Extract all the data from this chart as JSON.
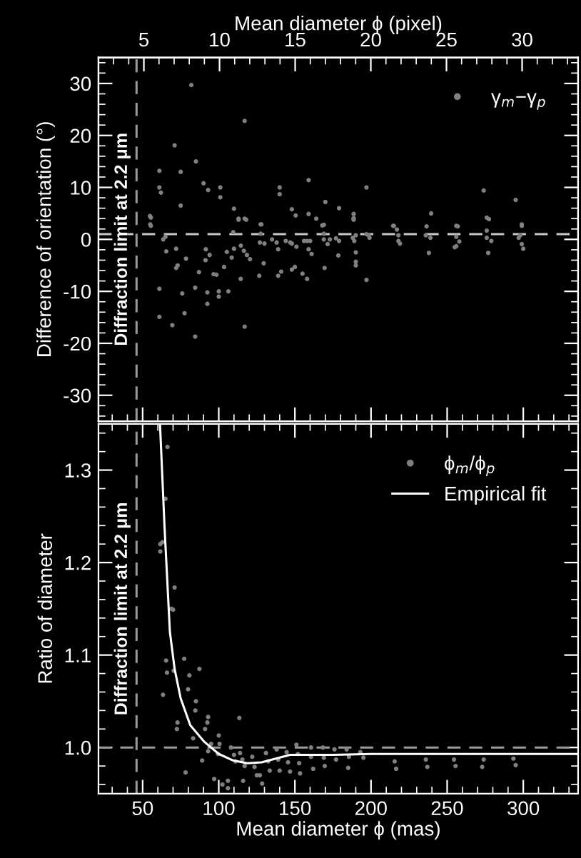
{
  "chart_data": [
    {
      "type": "scatter",
      "ylabel": "Difference of orientation (°)",
      "x2label": "Mean diameter ϕ (pixel)",
      "xlim": [
        21,
        336
      ],
      "xticks": [
        50,
        100,
        150,
        200,
        250,
        300
      ],
      "x2lim": [
        2.0,
        33.7
      ],
      "x2ticks": [
        5,
        10,
        15,
        20,
        25,
        30
      ],
      "ylim": [
        -35,
        35
      ],
      "yticks": [
        -30,
        -20,
        -10,
        0,
        10,
        20,
        30
      ],
      "tick_labels": "y",
      "legend": "top right",
      "grid": false,
      "ref_lines": [
        {
          "axis": "x",
          "value": 46,
          "label": "Diffraction limit at 2.2 μm",
          "color": "#9a9a9a",
          "line_style": "dashed"
        },
        {
          "axis": "y",
          "value": 1,
          "label": null,
          "color": "#c8c8c8",
          "line_style": "dashed"
        }
      ],
      "series": [
        {
          "name": "γ$_{m}$−γ$_{p}$",
          "marker": "circle",
          "color": "#808080",
          "x": [
            82,
            117,
            71,
            61,
            75,
            85,
            61,
            62,
            75,
            90,
            93,
            101,
            101,
            110,
            113,
            118,
            128,
            140,
            140,
            148,
            150.5,
            159,
            159,
            170,
            179,
            188.6,
            188.6,
            188.6,
            197,
            239.5,
            274,
            277.5,
            295,
            299,
            54.8,
            55,
            169,
            215,
            256,
            55.4,
            55.4,
            61,
            61,
            63.5,
            65,
            65.5,
            69.5,
            72,
            72,
            73,
            76,
            77.5,
            78.5,
            84.5,
            84.5,
            87,
            91.3,
            91.5,
            92.5,
            92.5,
            94,
            96.6,
            98.5,
            100,
            100,
            103.5,
            105.3,
            106.3,
            108.5,
            109.5,
            110,
            113,
            117,
            114.4,
            114.5,
            116.5,
            117,
            118.5,
            120.5,
            126.6,
            127.5,
            127.5,
            127,
            130,
            129.5,
            135,
            138,
            139,
            139,
            141,
            144,
            147,
            148,
            148,
            150,
            151,
            155,
            158,
            156,
            158,
            160,
            159,
            161,
            164,
            168,
            169,
            169,
            171.5,
            173,
            177,
            179,
            169.5,
            178.5,
            188.5,
            188,
            189,
            190,
            190,
            190,
            190,
            197,
            198.5,
            199,
            197,
            214.5,
            217,
            218,
            218,
            219,
            236.5,
            236,
            239,
            238,
            257,
            256,
            258,
            256,
            255,
            276,
            276,
            276,
            279,
            277,
            299,
            298,
            297,
            299,
            300
          ],
          "values": [
            29.7,
            22.8,
            18.1,
            13.2,
            13,
            15,
            10,
            9,
            6.5,
            10.8,
            9.5,
            10,
            8.1,
            5.9,
            3.8,
            3.8,
            2.9,
            10,
            8.7,
            5.8,
            4.6,
            11.4,
            4.9,
            7.2,
            6,
            4.9,
            4.1,
            3.8,
            10,
            5,
            9.4,
            3.9,
            7.6,
            2.9,
            4.5,
            2.9,
            2.8,
            2.6,
            2.6,
            4.2,
            2.6,
            -9.5,
            -14.9,
            0,
            0.5,
            -2.3,
            -16.5,
            -1.8,
            -5.5,
            -5,
            -10.4,
            -14.2,
            -3.7,
            -18.7,
            -9.3,
            -6.3,
            -4,
            -1.9,
            -10.2,
            -12.4,
            -3,
            -6.7,
            -6.8,
            -10,
            -11,
            -5.3,
            -2.4,
            -10,
            -3.5,
            1.4,
            -1.8,
            4,
            4,
            -7.6,
            -1.2,
            -2.2,
            -16.8,
            -3,
            -3.8,
            -7,
            2.9,
            1.1,
            -0.6,
            -0.8,
            -4.6,
            0,
            -0.6,
            -1.9,
            -7,
            -6.2,
            -0.3,
            -0.6,
            -0.8,
            -5.8,
            -5.3,
            -1.4,
            -6.6,
            -7.6,
            -0.3,
            -0.3,
            -0.3,
            -1.9,
            -2.8,
            4,
            2.7,
            1.1,
            0,
            -0.9,
            0,
            0.2,
            -0.3,
            -5.5,
            -3.1,
            3.9,
            0.3,
            -0.3,
            0.8,
            -2.5,
            -4.3,
            -5,
            1,
            0.8,
            0.3,
            -7.8,
            2.6,
            1.9,
            0.8,
            -0.3,
            -0.8,
            2.5,
            0.8,
            0.3,
            -2.6,
            2.5,
            0.5,
            -0.4,
            -1.3,
            -1.5,
            4.2,
            1.7,
            0.3,
            -0.3,
            -2.6,
            2.6,
            0.8,
            0.3,
            -0.9,
            -1.8
          ]
        }
      ]
    },
    {
      "type": "scatter",
      "xlabel": "Mean diameter ϕ (mas)",
      "ylabel": "Ratio of diameter",
      "xlim": [
        21,
        336
      ],
      "xticks": [
        50,
        100,
        150,
        200,
        250,
        300
      ],
      "ylim": [
        0.95,
        1.35
      ],
      "yticks": [
        {
          "value": 1.0,
          "label": "1.0"
        },
        1.1,
        1.2,
        1.3
      ],
      "tick_labels": true,
      "legend": "top right",
      "grid": false,
      "ref_lines": [
        {
          "axis": "x",
          "value": 46,
          "label": "Diffraction limit at 2.2 μm",
          "color": "#9a9a9a",
          "line_style": "dashed"
        },
        {
          "axis": "y",
          "value": 1.0,
          "label": null,
          "color": "#9a9a9a",
          "line_style": "dashed"
        }
      ],
      "series": [
        {
          "name": "ϕ$_{m}$/ϕ$_{p}$",
          "marker": "circle",
          "color": "#808080",
          "x": [
            66.3,
            61.6,
            61.6,
            63,
            71,
            69,
            70,
            65,
            65.4,
            66,
            63.4,
            77.3,
            70.4,
            72.9,
            72.5,
            80.7,
            79.8,
            83.2,
            87.3,
            85,
            84.6,
            78.2,
            93,
            92.5,
            91,
            95,
            93,
            89.1,
            97,
            100,
            100.5,
            99.5,
            102.4,
            106,
            113.5,
            108,
            110,
            111,
            114,
            115.5,
            117,
            116,
            122,
            123.5,
            125,
            127,
            128.5,
            131,
            132.5,
            133.5,
            138,
            139,
            140,
            144.6,
            145.5,
            146.8,
            151,
            152,
            152.8,
            153.4,
            160.6,
            160.6,
            162,
            168.4,
            169,
            169.6,
            176,
            177,
            185,
            184,
            185.5,
            193,
            195,
            215.5,
            216.5,
            236,
            237,
            254.5,
            255.5,
            274,
            273,
            293.5,
            295,
            106
          ],
          "values": [
            1.325,
            1.22,
            1.212,
            1.222,
            1.173,
            1.15,
            1.149,
            1.269,
            1.094,
            1.081,
            1.057,
            1.096,
            1.083,
            1.027,
            1.02,
            1.078,
            1.063,
            1.01,
            1.085,
            1.05,
            1.04,
            0.973,
            1.033,
            1.027,
            1.02,
            1.004,
            0.996,
            0.986,
            0.966,
            1.013,
            1.004,
            0.993,
            0.96,
            0.964,
            1.032,
            1.0,
            0.992,
            0.985,
            0.994,
            0.987,
            0.98,
            0.964,
            0.99,
            0.979,
            0.97,
            0.97,
            0.961,
            0.994,
            0.985,
            0.975,
            0.998,
            0.987,
            0.975,
            0.995,
            0.984,
            0.974,
            1.003,
            0.993,
            0.983,
            0.972,
            1.0,
            0.99,
            0.977,
            1.0,
            0.989,
            0.98,
            0.998,
            0.987,
            0.978,
            0.998,
            0.99,
            0.995,
            0.989,
            0.985,
            0.977,
            0.987,
            0.979,
            0.987,
            0.98,
            0.987,
            0.979,
            0.988,
            0.981,
            0.956
          ]
        },
        {
          "name": "Empirical fit",
          "type": "line",
          "color": "#ffffff",
          "x": [
            61.4,
            64.4,
            67.9,
            71,
            75,
            81.3,
            90.6,
            100,
            109.4,
            118.7,
            128.1,
            137.4,
            146.8,
            159.3,
            174.9,
            200,
            250,
            300,
            336
          ],
          "values": [
            1.35,
            1.238,
            1.125,
            1.085,
            1.053,
            1.024,
            1.006,
            0.993,
            0.986,
            0.983,
            0.984,
            0.988,
            0.992,
            0.992,
            0.992,
            0.993,
            0.993,
            0.993,
            0.993
          ]
        }
      ]
    }
  ]
}
